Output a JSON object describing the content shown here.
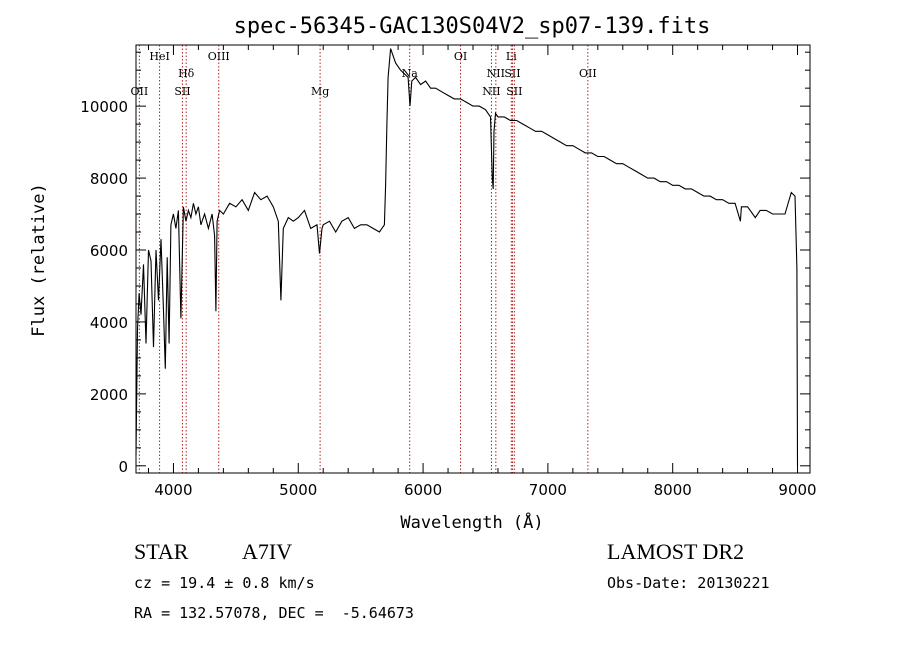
{
  "chart_data": {
    "type": "line",
    "title": "spec-56345-GAC130S04V2_sp07-139.fits",
    "xlabel": "Wavelength (Å)",
    "ylabel": "Flux (relative)",
    "xlim": [
      3700,
      9100
    ],
    "ylim": [
      -200,
      11700
    ],
    "xticks": [
      "4000",
      "5000",
      "6000",
      "7000",
      "8000",
      "9000"
    ],
    "yticks": [
      "0",
      "2000",
      "4000",
      "6000",
      "8000",
      "10000"
    ],
    "grid": false,
    "line_color": "#000000",
    "marker_color": "#b22222",
    "series": [
      {
        "x": [
          3700,
          3712,
          3725,
          3740,
          3760,
          3780,
          3800,
          3820,
          3840,
          3860,
          3880,
          3900,
          3920,
          3935,
          3950,
          3965,
          3980,
          4000,
          4020,
          4040,
          4060,
          4080,
          4100,
          4120,
          4140,
          4160,
          4180,
          4200,
          4220,
          4250,
          4280,
          4310,
          4330,
          4340,
          4350,
          4370,
          4400,
          4450,
          4500,
          4550,
          4600,
          4650,
          4700,
          4750,
          4800,
          4840,
          4861,
          4880,
          4920,
          4960,
          5000,
          5050,
          5100,
          5150,
          5170,
          5190,
          5200,
          5250,
          5300,
          5350,
          5400,
          5450,
          5500,
          5550,
          5600,
          5650,
          5690,
          5700,
          5710,
          5720,
          5740,
          5760,
          5780,
          5800,
          5820,
          5850,
          5880,
          5895,
          5910,
          5940,
          5980,
          6020,
          6060,
          6100,
          6150,
          6200,
          6250,
          6300,
          6350,
          6400,
          6450,
          6500,
          6540,
          6555,
          6562,
          6568,
          6580,
          6600,
          6650,
          6700,
          6750,
          6800,
          6850,
          6900,
          6950,
          7000,
          7050,
          7100,
          7150,
          7200,
          7250,
          7300,
          7350,
          7400,
          7450,
          7500,
          7550,
          7600,
          7650,
          7700,
          7750,
          7800,
          7850,
          7900,
          7950,
          8000,
          8050,
          8100,
          8150,
          8200,
          8250,
          8300,
          8350,
          8400,
          8450,
          8500,
          8542,
          8550,
          8600,
          8662,
          8700,
          8750,
          8800,
          8850,
          8900,
          8950,
          8980,
          8995,
          9000
        ],
        "y": [
          300,
          3800,
          4800,
          4200,
          5600,
          3400,
          6000,
          5700,
          3300,
          6000,
          4600,
          6300,
          4300,
          2700,
          5800,
          3400,
          6700,
          7000,
          6600,
          7100,
          4100,
          7200,
          6800,
          7100,
          6900,
          7300,
          7000,
          7200,
          6700,
          7000,
          6600,
          7000,
          6400,
          4300,
          6800,
          7100,
          7000,
          7300,
          7200,
          7400,
          7100,
          7600,
          7400,
          7500,
          7200,
          6800,
          4600,
          6600,
          6900,
          6800,
          6900,
          7100,
          6600,
          6700,
          5900,
          6600,
          6700,
          6800,
          6500,
          6800,
          6900,
          6600,
          6700,
          6700,
          6600,
          6500,
          6700,
          7800,
          9500,
          10800,
          11600,
          11400,
          11200,
          11100,
          11000,
          10900,
          10800,
          10000,
          10700,
          10800,
          10600,
          10700,
          10500,
          10500,
          10400,
          10300,
          10200,
          10200,
          10100,
          10000,
          10000,
          9900,
          9700,
          8000,
          7700,
          9300,
          9800,
          9700,
          9700,
          9600,
          9600,
          9500,
          9400,
          9300,
          9300,
          9200,
          9100,
          9000,
          8900,
          8900,
          8800,
          8700,
          8700,
          8600,
          8600,
          8500,
          8400,
          8400,
          8300,
          8200,
          8100,
          8000,
          8000,
          7900,
          7900,
          7800,
          7800,
          7700,
          7700,
          7600,
          7500,
          7500,
          7400,
          7400,
          7300,
          7300,
          6800,
          7200,
          7200,
          6900,
          7100,
          7100,
          7000,
          7000,
          7000,
          7600,
          7500,
          5500,
          0
        ]
      }
    ],
    "line_markers": [
      {
        "label": "OII",
        "x": 3727,
        "row": 3
      },
      {
        "label": "HeI",
        "x": 3889,
        "row": 1
      },
      {
        "label": "Hδ",
        "x": 4102,
        "row": 2
      },
      {
        "label": "SII",
        "x": 4072,
        "row": 3
      },
      {
        "label": "OIII",
        "x": 4363,
        "row": 1
      },
      {
        "label": "Mg",
        "x": 5175,
        "row": 3
      },
      {
        "label": "Na",
        "x": 5893,
        "row": 2
      },
      {
        "label": "OI",
        "x": 6300,
        "row": 1
      },
      {
        "label": "NII",
        "x": 6548,
        "row": 3
      },
      {
        "label": "NII",
        "x": 6583,
        "row": 2
      },
      {
        "label": "Li",
        "x": 6707,
        "row": 1
      },
      {
        "label": "SII",
        "x": 6716,
        "row": 2
      },
      {
        "label": "SII",
        "x": 6731,
        "row": 3
      },
      {
        "label": "OII",
        "x": 7320,
        "row": 2
      }
    ]
  },
  "info": {
    "object_class": "STAR",
    "subclass": "A7IV",
    "survey": "LAMOST DR2",
    "redshift": "cz = 19.4 ± 0.8 km/s",
    "obs_date": "Obs-Date: 20130221",
    "coords": "RA = 132.57078, DEC =  -5.64673"
  }
}
